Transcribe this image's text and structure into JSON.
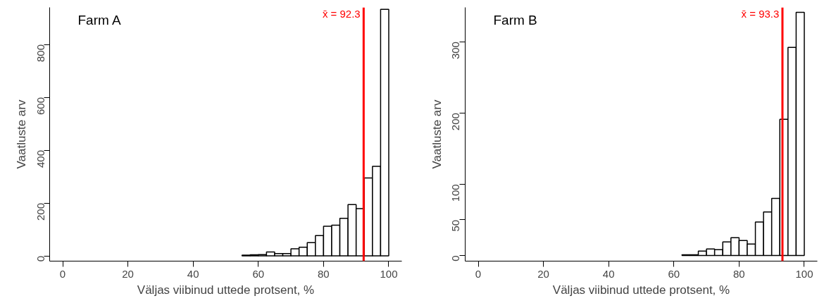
{
  "chart_data": [
    {
      "type": "histogram",
      "title": "Farm A",
      "xlabel": "Väljas viibinud uttede protsent, %",
      "ylabel": "Vaatluste arv",
      "bins": [
        55,
        57.5,
        60,
        62.5,
        65,
        67.5,
        70,
        72.5,
        75,
        77.5,
        80,
        82.5,
        85,
        87.5,
        90,
        92.5,
        95,
        97.5,
        100
      ],
      "values": [
        3,
        4,
        5,
        15,
        9,
        9,
        27,
        33,
        50,
        77,
        112,
        116,
        142,
        194,
        179,
        295,
        339,
        933
      ],
      "color": "#ffffff",
      "xlim": [
        -4,
        104
      ],
      "xticks": [
        0,
        20,
        40,
        60,
        80,
        100
      ],
      "ylim": [
        -20,
        940
      ],
      "yticks": [
        0,
        200,
        400,
        600,
        800
      ],
      "ref_lines": [
        {
          "axis": "x",
          "value": 92.3,
          "label": "x̄ = 92.3",
          "color": "#ff0000"
        }
      ],
      "grid": false
    },
    {
      "type": "histogram",
      "title": "Farm B",
      "xlabel": "Väljas viibinud uttede protsent, %",
      "ylabel": "Vaatluste arv",
      "bins": [
        62.5,
        65,
        67.5,
        70,
        72.5,
        75,
        77.5,
        80,
        82.5,
        85,
        87.5,
        90,
        92.5,
        95,
        97.5,
        100
      ],
      "values": [
        1,
        1,
        6,
        9,
        8,
        19,
        25,
        21,
        16,
        47,
        61,
        80,
        191,
        292,
        341
      ],
      "color": "#ffffff",
      "xlim": [
        -4,
        104
      ],
      "xticks": [
        0,
        20,
        40,
        60,
        80,
        100
      ],
      "ylim": [
        -8,
        348
      ],
      "yticks": [
        0,
        50,
        100,
        200,
        300
      ],
      "ref_lines": [
        {
          "axis": "x",
          "value": 93.3,
          "label": "x̄ = 93.3",
          "color": "#ff0000"
        }
      ],
      "grid": false
    }
  ]
}
